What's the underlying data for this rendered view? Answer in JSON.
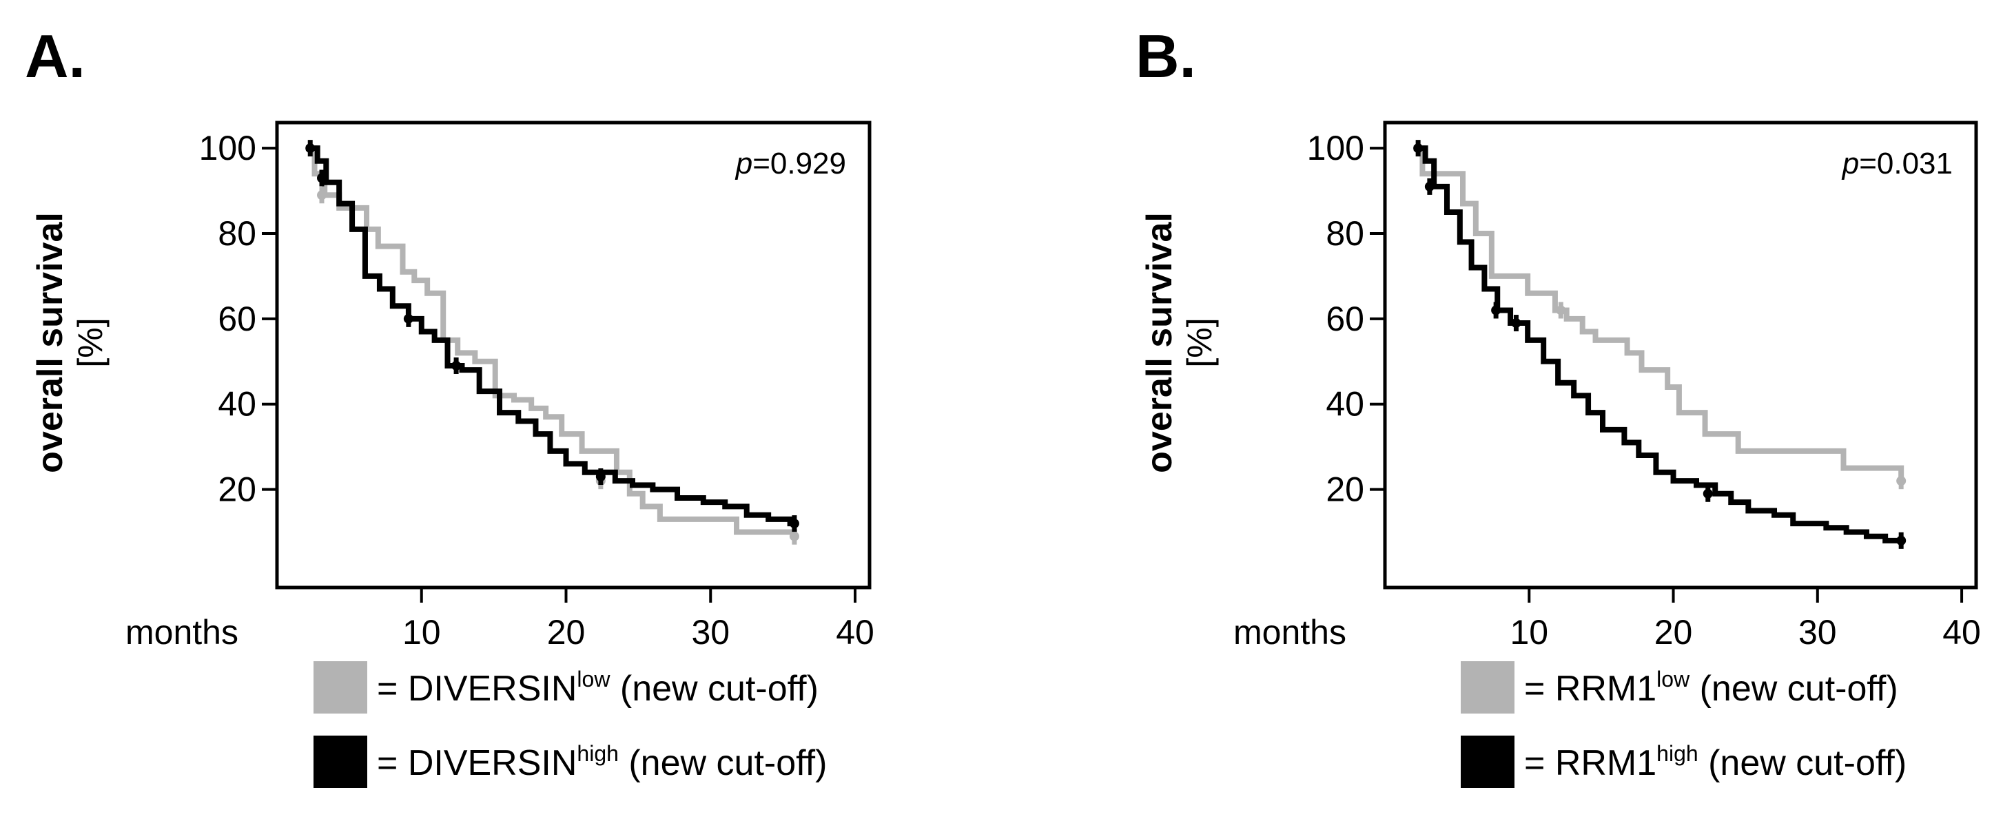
{
  "chart_data": [
    {
      "type": "line",
      "panel_label": "A.",
      "xlabel": "months",
      "ylabel": "overall survival",
      "ylabel_unit": "[%]",
      "xlim": [
        0,
        41
      ],
      "ylim": [
        -3,
        106
      ],
      "xticks": [
        10,
        20,
        30,
        40
      ],
      "yticks": [
        20,
        40,
        60,
        80,
        100
      ],
      "annotation": {
        "prefix": "p",
        "value": "=0.929"
      },
      "series": [
        {
          "name": "DIVERSIN low (new cut-off)",
          "legend_base": "DIVERSIN",
          "legend_sup": "low",
          "legend_suffix": "(new cut-off)",
          "color": "#b3b3b3",
          "x": [
            2,
            2.6,
            3.3,
            4.3,
            6.2,
            7.0,
            8.7,
            9.5,
            10.4,
            11.5,
            12.5,
            13.7,
            15.1,
            16.4,
            17.6,
            18.6,
            19.7,
            21.1,
            23.5,
            24.4,
            25.3,
            26.5,
            27.5,
            31.8,
            33.5,
            35.8
          ],
          "y": [
            100,
            94,
            89,
            86,
            81,
            77,
            71,
            69,
            66,
            55,
            52,
            50,
            42,
            41,
            39,
            37,
            33,
            29,
            24,
            19,
            16,
            13,
            13,
            10,
            10,
            9
          ],
          "censored": [
            [
              3.1,
              89
            ],
            [
              22.4,
              22
            ],
            [
              35.8,
              9
            ]
          ]
        },
        {
          "name": "DIVERSIN high (new cut-off)",
          "legend_base": "DIVERSIN",
          "legend_sup": "high",
          "legend_suffix": "(new cut-off)",
          "color": "#000000",
          "x": [
            2,
            2.8,
            3.4,
            4.3,
            5.2,
            6.1,
            7.1,
            8.0,
            9.1,
            10.0,
            10.9,
            11.8,
            12.8,
            14.0,
            15.4,
            16.7,
            17.9,
            18.9,
            20.0,
            21.3,
            23.4,
            24.6,
            26.0,
            27.7,
            29.5,
            31.0,
            32.5,
            34.0,
            35.5
          ],
          "y": [
            100,
            97,
            92,
            87,
            81,
            70,
            67,
            63,
            60,
            57,
            55,
            49,
            48,
            43,
            38,
            36,
            33,
            29,
            26,
            24,
            22,
            21,
            20,
            18,
            17,
            16,
            14,
            13,
            12
          ],
          "censored": [
            [
              2.3,
              100
            ],
            [
              3.1,
              93
            ],
            [
              9.1,
              60
            ],
            [
              12.4,
              49
            ],
            [
              22.4,
              23
            ],
            [
              35.8,
              12
            ]
          ]
        }
      ]
    },
    {
      "type": "line",
      "panel_label": "B.",
      "xlabel": "months",
      "ylabel": "overall survival",
      "ylabel_unit": "[%]",
      "xlim": [
        0,
        41
      ],
      "ylim": [
        -3,
        106
      ],
      "xticks": [
        10,
        20,
        30,
        40
      ],
      "yticks": [
        20,
        40,
        60,
        80,
        100
      ],
      "annotation": {
        "prefix": "p",
        "value": "=0.031"
      },
      "series": [
        {
          "name": "RRM1 low (new cut-off)",
          "legend_base": "RRM1",
          "legend_sup": "low",
          "legend_suffix": "(new cut-off)",
          "color": "#b3b3b3",
          "x": [
            2,
            2.6,
            5.4,
            6.3,
            7.4,
            9.9,
            11.8,
            12.6,
            13.7,
            14.6,
            16.8,
            17.8,
            19.6,
            20.4,
            22.2,
            24.5,
            31.8,
            35.8
          ],
          "y": [
            100,
            94,
            87,
            80,
            70,
            66,
            62,
            60,
            57,
            55,
            52,
            48,
            44,
            38,
            33,
            29,
            25,
            22
          ],
          "censored": [
            [
              12.2,
              62
            ],
            [
              35.8,
              22
            ]
          ]
        },
        {
          "name": "RRM1 high (new cut-off)",
          "legend_base": "RRM1",
          "legend_sup": "high",
          "legend_suffix": "(new cut-off)",
          "color": "#000000",
          "x": [
            2,
            2.8,
            3.4,
            4.3,
            5.2,
            6.0,
            6.9,
            7.8,
            8.7,
            9.9,
            11.0,
            12.0,
            13.1,
            14.1,
            15.1,
            16.6,
            17.6,
            18.8,
            20.0,
            21.6,
            22.9,
            24.0,
            25.2,
            27.0,
            28.3,
            30.6,
            32.0,
            33.4,
            34.7,
            35.5
          ],
          "y": [
            100,
            97,
            91,
            85,
            78,
            72,
            67,
            62,
            59,
            55,
            50,
            45,
            42,
            38,
            34,
            31,
            28,
            24,
            22,
            21,
            19,
            17,
            15,
            14,
            12,
            11,
            10,
            9,
            8,
            8
          ],
          "censored": [
            [
              2.3,
              100
            ],
            [
              3.1,
              91
            ],
            [
              7.7,
              62
            ],
            [
              9.1,
              59
            ],
            [
              22.4,
              19
            ],
            [
              35.8,
              8
            ]
          ]
        }
      ]
    }
  ]
}
